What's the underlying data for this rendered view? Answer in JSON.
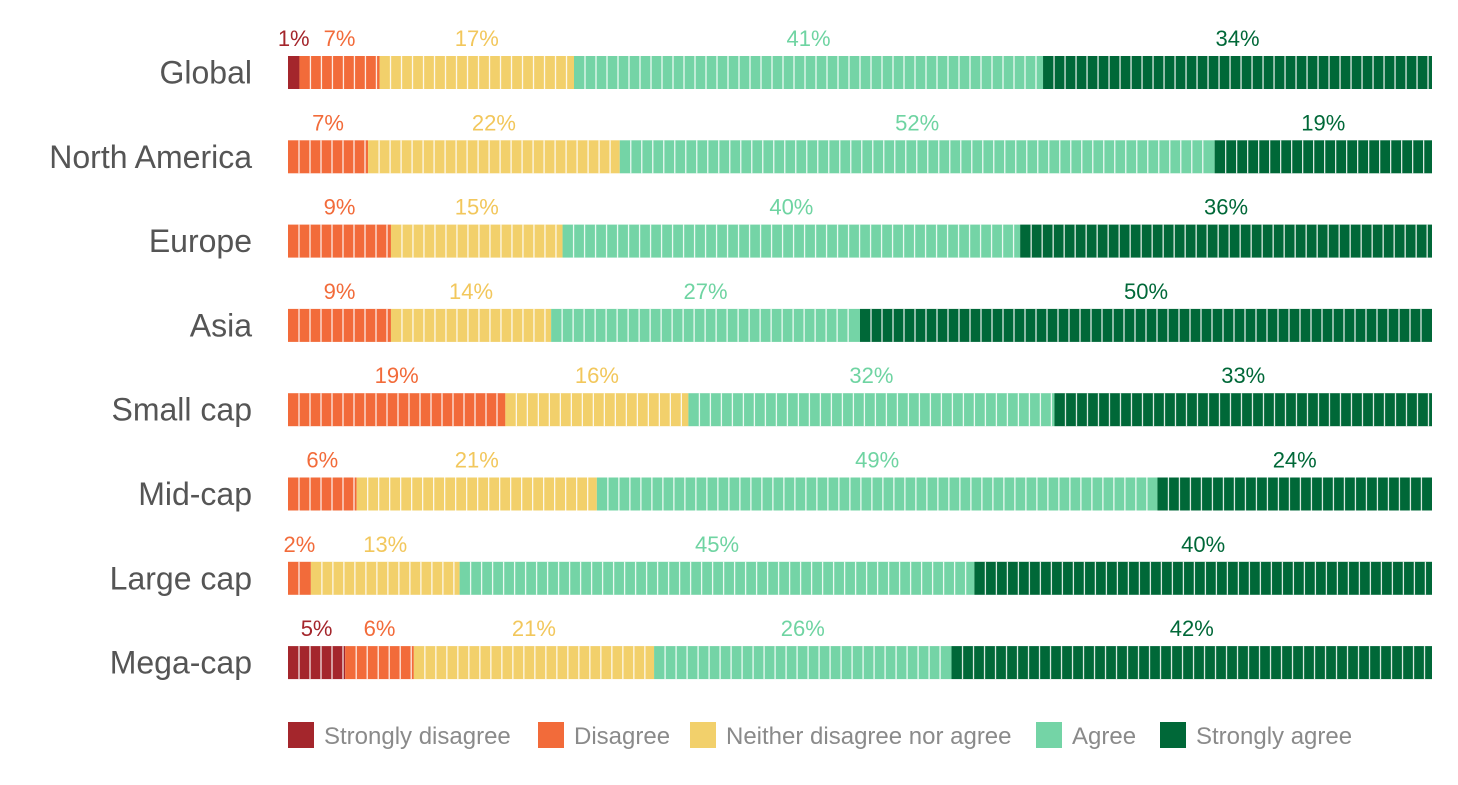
{
  "chart_data": {
    "type": "bar",
    "orientation": "horizontal",
    "stacked": true,
    "percent_stacked": true,
    "categories": [
      "Global",
      "North America",
      "Europe",
      "Asia",
      "Small cap",
      "Mid-cap",
      "Large cap",
      "Mega-cap"
    ],
    "series": [
      {
        "name": "Strongly disagree",
        "color": "#a4262c",
        "values": [
          1,
          0,
          0,
          0,
          0,
          0,
          0,
          5
        ]
      },
      {
        "name": "Disagree",
        "color": "#f26b3a",
        "values": [
          7,
          7,
          9,
          9,
          19,
          6,
          2,
          6
        ]
      },
      {
        "name": "Neither disagree nor agree",
        "color": "#f2d06b",
        "values": [
          17,
          22,
          15,
          14,
          16,
          21,
          13,
          21
        ]
      },
      {
        "name": "Agree",
        "color": "#74d4a6",
        "values": [
          41,
          52,
          40,
          27,
          32,
          49,
          45,
          26
        ]
      },
      {
        "name": "Strongly agree",
        "color": "#006838",
        "values": [
          34,
          19,
          36,
          50,
          33,
          24,
          40,
          42
        ]
      }
    ],
    "xlim": [
      0,
      100
    ],
    "grid": false,
    "legend_position": "bottom",
    "title": "",
    "xlabel": "",
    "ylabel": ""
  }
}
